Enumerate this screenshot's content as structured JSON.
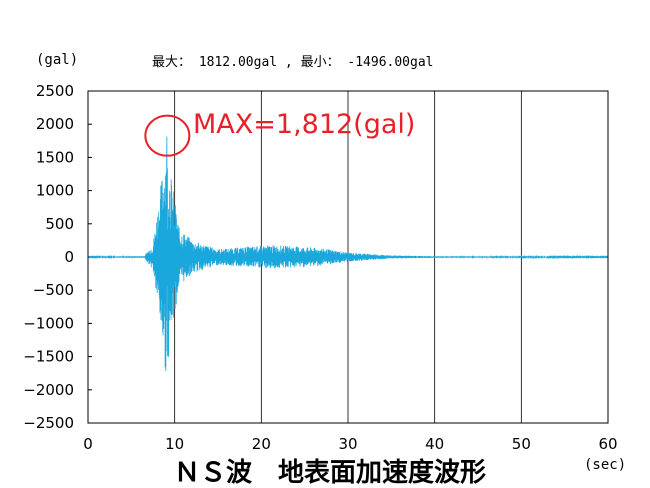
{
  "chart_data": {
    "type": "line",
    "title": "ＮＳ波　地表面加速度波形",
    "ylabel": "(gal)",
    "xlabel": "(sec)",
    "stats_text": "最大： 1812.00gal , 最小： -1496.00gal",
    "annotation": "MAX=1,812(gal)",
    "max_value": 1812.0,
    "min_value": -1496.0,
    "peak_time": 9.1,
    "xlim": [
      0,
      60
    ],
    "ylim": [
      -2500,
      2500
    ],
    "x_ticks": [
      "0",
      "10",
      "20",
      "30",
      "40",
      "50",
      "60"
    ],
    "y_ticks": [
      "2500",
      "2000",
      "1500",
      "1000",
      "500",
      "0",
      "-500",
      "-1000",
      "-1500",
      "-2000",
      "-2500"
    ],
    "grid": true,
    "series": [
      {
        "color": "#1aa7dc",
        "envelope": [
          [
            0,
            5
          ],
          [
            6.5,
            15
          ],
          [
            7.5,
            200
          ],
          [
            8.0,
            700
          ],
          [
            8.5,
            1200
          ],
          [
            9.0,
            1812
          ],
          [
            9.5,
            1300
          ],
          [
            10.5,
            450
          ],
          [
            12,
            250
          ],
          [
            15,
            120
          ],
          [
            18,
            150
          ],
          [
            21,
            180
          ],
          [
            24,
            160
          ],
          [
            27,
            130
          ],
          [
            30,
            70
          ],
          [
            35,
            25
          ],
          [
            40,
            12
          ],
          [
            50,
            8
          ],
          [
            60,
            5
          ]
        ]
      }
    ],
    "marker_color": "#e8202a"
  }
}
